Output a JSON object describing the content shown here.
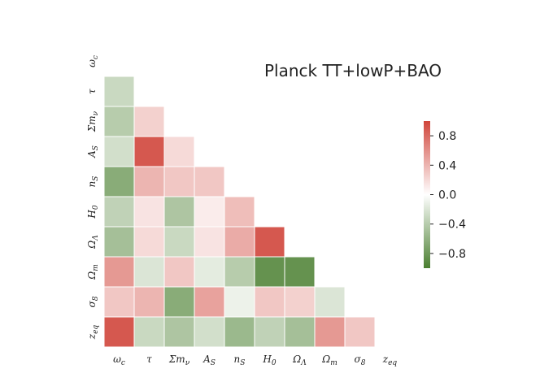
{
  "chart_data": {
    "type": "heatmap",
    "title": "Planck TT+lowP+BAO",
    "xlabel": "",
    "ylabel": "",
    "parameters": [
      "ω_c",
      "τ",
      "Σm_ν",
      "A_S",
      "n_S",
      "H_0",
      "Ω_Λ",
      "Ω_m",
      "σ_8",
      "z_eq"
    ],
    "x_tick_labels": [
      {
        "base": "ω",
        "sub": "c"
      },
      {
        "base": "τ",
        "sub": ""
      },
      {
        "base": "Σm",
        "sub": "ν"
      },
      {
        "base": "A",
        "sub": "S"
      },
      {
        "base": "n",
        "sub": "S"
      },
      {
        "base": "H",
        "sub": "0"
      },
      {
        "base": "Ω",
        "sub": "Λ"
      },
      {
        "base": "Ω",
        "sub": "m"
      },
      {
        "base": "σ",
        "sub": "8"
      },
      {
        "base": "z",
        "sub": "eq"
      }
    ],
    "y_tick_labels": [
      {
        "base": "ω",
        "sub": "c"
      },
      {
        "base": "τ",
        "sub": ""
      },
      {
        "base": "Σm",
        "sub": "ν"
      },
      {
        "base": "A",
        "sub": "S"
      },
      {
        "base": "n",
        "sub": "S"
      },
      {
        "base": "H",
        "sub": "0"
      },
      {
        "base": "Ω",
        "sub": "Λ"
      },
      {
        "base": "Ω",
        "sub": "m"
      },
      {
        "base": "σ",
        "sub": "8"
      },
      {
        "base": "z",
        "sub": "eq"
      }
    ],
    "matrix": [
      [],
      [
        -0.3
      ],
      [
        -0.4,
        0.25
      ],
      [
        -0.25,
        0.9,
        0.2
      ],
      [
        -0.65,
        0.4,
        0.3,
        0.3
      ],
      [
        -0.35,
        0.15,
        -0.45,
        0.1,
        0.35
      ],
      [
        -0.5,
        0.2,
        -0.3,
        0.15,
        0.45,
        0.9
      ],
      [
        0.55,
        -0.2,
        0.3,
        -0.15,
        -0.4,
        -0.85,
        -0.85
      ],
      [
        0.3,
        0.4,
        -0.65,
        0.5,
        -0.1,
        0.3,
        0.25,
        -0.2
      ],
      [
        0.9,
        -0.3,
        -0.45,
        -0.25,
        -0.55,
        -0.35,
        -0.5,
        0.55,
        0.3
      ]
    ],
    "mask": "upper-triangle-and-diagonal",
    "colorbar": {
      "vmin": -1.0,
      "vmax": 1.0,
      "ticks": [
        0.8,
        0.4,
        0.0,
        -0.4,
        -0.8
      ],
      "tick_labels": [
        "0.8",
        "0.4",
        "0.0",
        "−0.4",
        "−0.8"
      ],
      "colors": {
        "negative": "#4a7f30",
        "zero": "#ffffff",
        "positive": "#d0453b"
      }
    },
    "grid": false,
    "legend": "right"
  }
}
